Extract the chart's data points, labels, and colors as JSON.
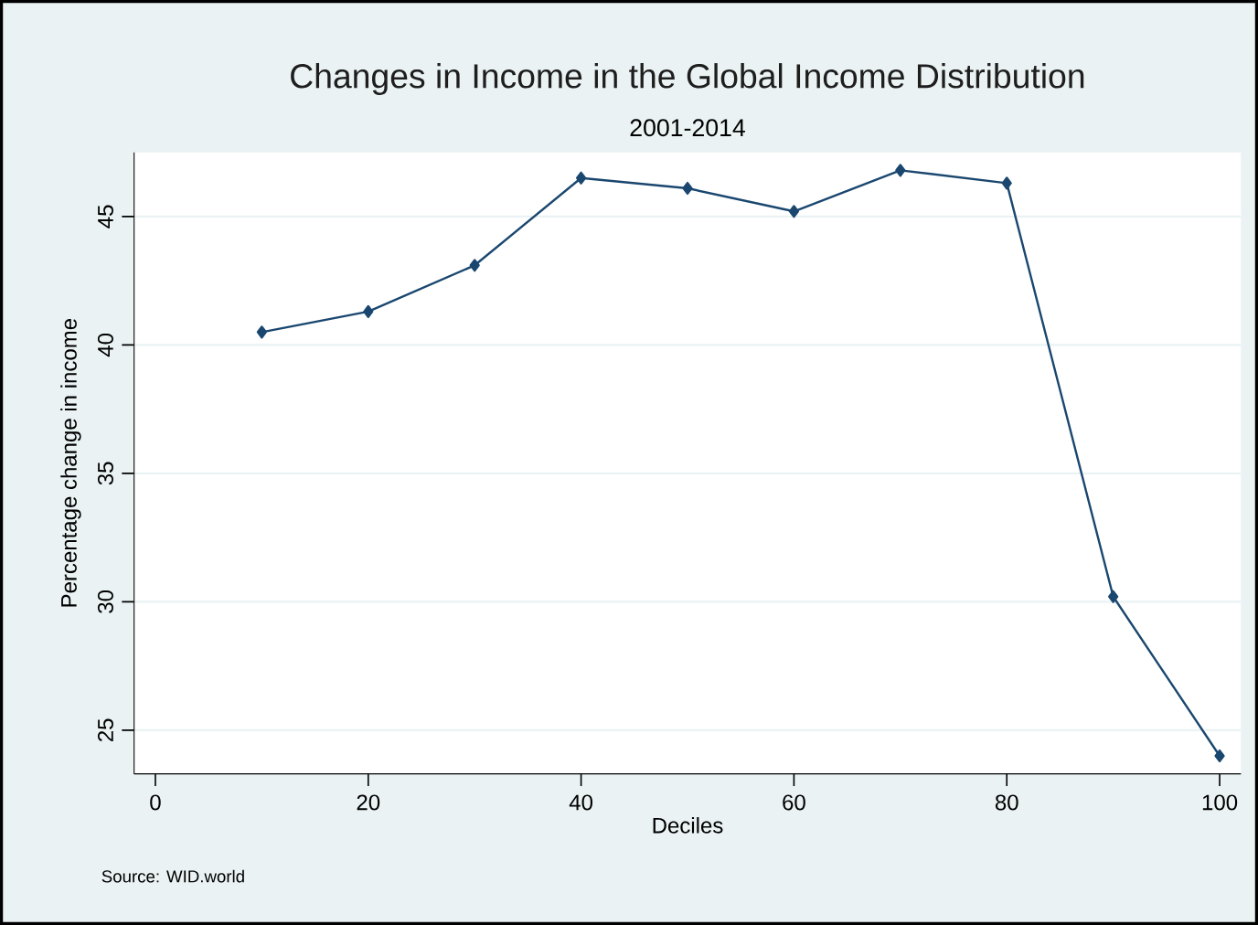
{
  "chart_data": {
    "type": "line",
    "title": "Changes in Income in the Global Income Distribution",
    "subtitle": "2001-2014",
    "xlabel": "Deciles",
    "ylabel": "Percentage change in income",
    "annotations": [
      "Source: WID.world"
    ],
    "x": [
      10,
      20,
      30,
      40,
      50,
      60,
      70,
      80,
      90,
      100
    ],
    "series": [
      {
        "color": "#1a476f",
        "values": [
          40.5,
          41.3,
          43.1,
          46.5,
          46.1,
          45.2,
          46.8,
          46.3,
          30.2,
          24.0
        ]
      }
    ],
    "xlim": [
      -2,
      102
    ],
    "ylim": [
      23.3,
      47.5
    ],
    "xticks": [
      0,
      20,
      40,
      60,
      80,
      100
    ],
    "yticks": [
      25,
      30,
      35,
      40,
      45
    ],
    "grid": "y",
    "marker": "diamond",
    "line_style": "solid"
  }
}
